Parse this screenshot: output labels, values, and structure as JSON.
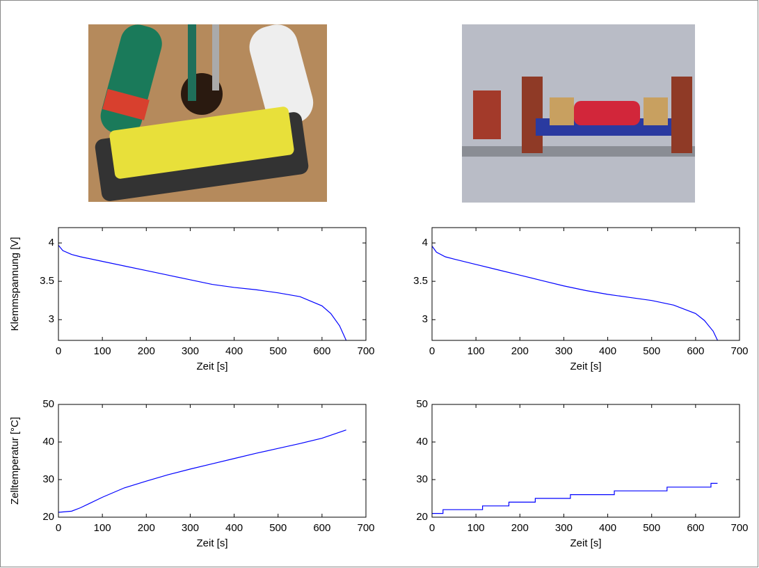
{
  "chart_data": [
    {
      "type": "line",
      "ylabel": "Klemmspannung [V]",
      "xlabel": "Zeit [s]",
      "x": [
        0,
        10,
        30,
        50,
        100,
        150,
        200,
        250,
        300,
        350,
        400,
        450,
        500,
        550,
        600,
        620,
        640,
        655
      ],
      "series": [
        {
          "color": "#0000ff",
          "values": [
            3.97,
            3.9,
            3.85,
            3.82,
            3.76,
            3.7,
            3.64,
            3.58,
            3.52,
            3.46,
            3.42,
            3.39,
            3.35,
            3.3,
            3.18,
            3.08,
            2.92,
            2.73
          ]
        }
      ],
      "xlim": [
        0,
        700
      ],
      "ylim": [
        2.73,
        4.2
      ],
      "xticks": [
        0,
        100,
        200,
        300,
        400,
        500,
        600,
        700
      ],
      "yticks": [
        3,
        3.5,
        4
      ]
    },
    {
      "type": "line",
      "xlabel": "Zeit [s]",
      "x": [
        0,
        10,
        30,
        50,
        100,
        150,
        200,
        250,
        300,
        350,
        400,
        450,
        500,
        550,
        600,
        620,
        640,
        650
      ],
      "series": [
        {
          "color": "#0000ff",
          "values": [
            3.96,
            3.88,
            3.82,
            3.79,
            3.72,
            3.65,
            3.58,
            3.51,
            3.44,
            3.38,
            3.33,
            3.29,
            3.25,
            3.19,
            3.08,
            2.99,
            2.85,
            2.73
          ]
        }
      ],
      "xlim": [
        0,
        700
      ],
      "ylim": [
        2.73,
        4.2
      ],
      "xticks": [
        0,
        100,
        200,
        300,
        400,
        500,
        600,
        700
      ],
      "yticks": [
        3,
        3.5,
        4
      ]
    },
    {
      "type": "line",
      "ylabel": "Zelltemperatur [°C]",
      "xlabel": "Zeit [s]",
      "x": [
        0,
        30,
        50,
        100,
        150,
        200,
        250,
        300,
        350,
        400,
        450,
        500,
        550,
        600,
        655
      ],
      "series": [
        {
          "color": "#0000ff",
          "values": [
            21.3,
            21.6,
            22.5,
            25.3,
            27.8,
            29.6,
            31.3,
            32.8,
            34.2,
            35.6,
            37,
            38.3,
            39.6,
            41,
            43.2
          ]
        }
      ],
      "xlim": [
        0,
        700
      ],
      "ylim": [
        20,
        50
      ],
      "xticks": [
        0,
        100,
        200,
        300,
        400,
        500,
        600,
        700
      ],
      "yticks": [
        20,
        30,
        40,
        50
      ]
    },
    {
      "type": "line",
      "xlabel": "Zeit [s]",
      "x": [
        0,
        25,
        25,
        115,
        115,
        175,
        175,
        235,
        235,
        315,
        315,
        415,
        415,
        535,
        535,
        635,
        635,
        650
      ],
      "series": [
        {
          "color": "#0000ff",
          "values": [
            21,
            21,
            22,
            22,
            23,
            23,
            24,
            24,
            25,
            25,
            26,
            26,
            27,
            27,
            28,
            28,
            29,
            29
          ]
        }
      ],
      "xlim": [
        0,
        700
      ],
      "ylim": [
        20,
        50
      ],
      "xticks": [
        0,
        100,
        200,
        300,
        400,
        500,
        600,
        700
      ],
      "yticks": [
        20,
        30,
        40,
        50
      ]
    }
  ]
}
